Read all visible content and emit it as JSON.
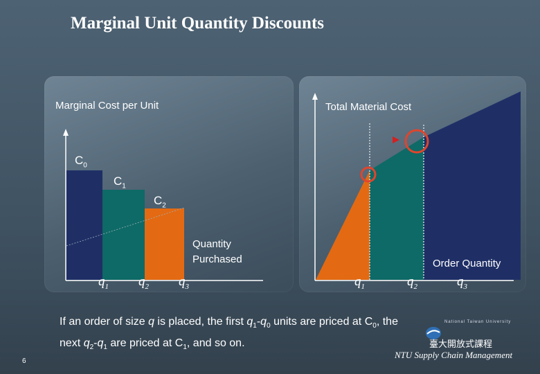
{
  "title": "Marginal Unit Quantity Discounts",
  "left_panel": {
    "heading": "Marginal Cost per Unit",
    "price_labels": [
      {
        "main": "C",
        "sub": "0"
      },
      {
        "main": "C",
        "sub": "1"
      },
      {
        "main": "C",
        "sub": "2"
      }
    ],
    "x_axis_label_line1": "Quantity",
    "x_axis_label_line2": "Purchased",
    "x_ticks": [
      {
        "main": "q",
        "sub": "1"
      },
      {
        "main": "q",
        "sub": "2"
      },
      {
        "main": "q",
        "sub": "3"
      }
    ]
  },
  "right_panel": {
    "heading": "Total Material Cost",
    "x_axis_label": "Order Quantity",
    "x_ticks": [
      {
        "main": "q",
        "sub": "1"
      },
      {
        "main": "q",
        "sub": "2"
      },
      {
        "main": "q",
        "sub": "3"
      }
    ]
  },
  "caption": {
    "line1_a": "If an order of size ",
    "line1_q": "q",
    "line1_b": " is placed, the first ",
    "line1_q1": "q",
    "line1_q1sub": "1",
    "line1_dash": "-",
    "line1_q0": "q",
    "line1_q0sub": "0",
    "line1_c": " units are priced at ",
    "line1_C": "C",
    "line1_Csub": "0",
    "line1_d": ", the",
    "line2_a": "next ",
    "line2_q2": "q",
    "line2_q2sub": "2",
    "line2_dash": "-",
    "line2_q1": "q",
    "line2_q1sub": "1",
    "line2_b": " are priced at ",
    "line2_C": "C",
    "line2_Csub": "1",
    "line2_c": ", and so on."
  },
  "page_number": "6",
  "footer": {
    "logo_chinese": "臺大開放式課程",
    "logo_english": "National Taiwan University",
    "brand": "NTU Supply Chain Management"
  },
  "colors": {
    "segment_1": "#1f2f66",
    "segment_2": "#0e6a66",
    "segment_3": "#e36a12",
    "highlight": "#e0452c"
  }
}
